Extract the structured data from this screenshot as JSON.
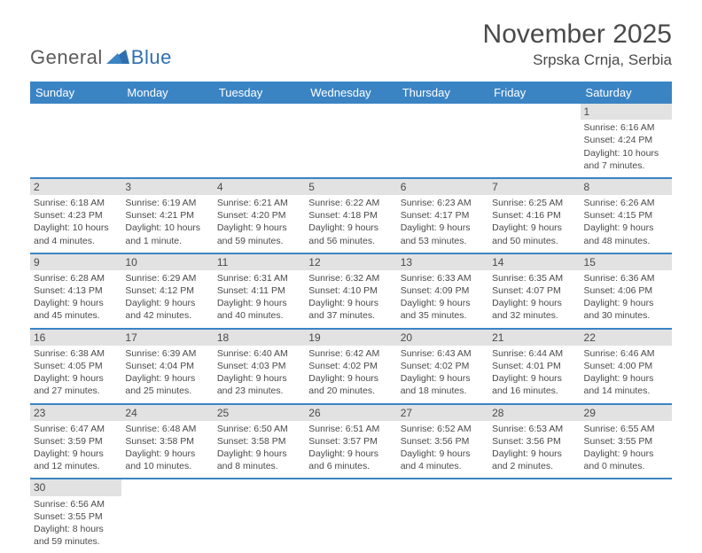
{
  "brand": {
    "general": "General",
    "blue": "Blue"
  },
  "title": "November 2025",
  "location": "Srpska Crnja, Serbia",
  "style": {
    "header_bg": "#3b84c4",
    "header_text": "#ffffff",
    "daybar_bg": "#e2e2e2",
    "rule_color": "#3b84c4",
    "body_text": "#4a4a4a",
    "title_fontsize": 30,
    "location_fontsize": 17,
    "th_fontsize": 13,
    "cell_fontsize": 10.5
  },
  "weekdays": [
    "Sunday",
    "Monday",
    "Tuesday",
    "Wednesday",
    "Thursday",
    "Friday",
    "Saturday"
  ],
  "weeks": [
    [
      null,
      null,
      null,
      null,
      null,
      null,
      {
        "n": "1",
        "sr": "6:16 AM",
        "ss": "4:24 PM",
        "dl": "10 hours and 7 minutes."
      }
    ],
    [
      {
        "n": "2",
        "sr": "6:18 AM",
        "ss": "4:23 PM",
        "dl": "10 hours and 4 minutes."
      },
      {
        "n": "3",
        "sr": "6:19 AM",
        "ss": "4:21 PM",
        "dl": "10 hours and 1 minute."
      },
      {
        "n": "4",
        "sr": "6:21 AM",
        "ss": "4:20 PM",
        "dl": "9 hours and 59 minutes."
      },
      {
        "n": "5",
        "sr": "6:22 AM",
        "ss": "4:18 PM",
        "dl": "9 hours and 56 minutes."
      },
      {
        "n": "6",
        "sr": "6:23 AM",
        "ss": "4:17 PM",
        "dl": "9 hours and 53 minutes."
      },
      {
        "n": "7",
        "sr": "6:25 AM",
        "ss": "4:16 PM",
        "dl": "9 hours and 50 minutes."
      },
      {
        "n": "8",
        "sr": "6:26 AM",
        "ss": "4:15 PM",
        "dl": "9 hours and 48 minutes."
      }
    ],
    [
      {
        "n": "9",
        "sr": "6:28 AM",
        "ss": "4:13 PM",
        "dl": "9 hours and 45 minutes."
      },
      {
        "n": "10",
        "sr": "6:29 AM",
        "ss": "4:12 PM",
        "dl": "9 hours and 42 minutes."
      },
      {
        "n": "11",
        "sr": "6:31 AM",
        "ss": "4:11 PM",
        "dl": "9 hours and 40 minutes."
      },
      {
        "n": "12",
        "sr": "6:32 AM",
        "ss": "4:10 PM",
        "dl": "9 hours and 37 minutes."
      },
      {
        "n": "13",
        "sr": "6:33 AM",
        "ss": "4:09 PM",
        "dl": "9 hours and 35 minutes."
      },
      {
        "n": "14",
        "sr": "6:35 AM",
        "ss": "4:07 PM",
        "dl": "9 hours and 32 minutes."
      },
      {
        "n": "15",
        "sr": "6:36 AM",
        "ss": "4:06 PM",
        "dl": "9 hours and 30 minutes."
      }
    ],
    [
      {
        "n": "16",
        "sr": "6:38 AM",
        "ss": "4:05 PM",
        "dl": "9 hours and 27 minutes."
      },
      {
        "n": "17",
        "sr": "6:39 AM",
        "ss": "4:04 PM",
        "dl": "9 hours and 25 minutes."
      },
      {
        "n": "18",
        "sr": "6:40 AM",
        "ss": "4:03 PM",
        "dl": "9 hours and 23 minutes."
      },
      {
        "n": "19",
        "sr": "6:42 AM",
        "ss": "4:02 PM",
        "dl": "9 hours and 20 minutes."
      },
      {
        "n": "20",
        "sr": "6:43 AM",
        "ss": "4:02 PM",
        "dl": "9 hours and 18 minutes."
      },
      {
        "n": "21",
        "sr": "6:44 AM",
        "ss": "4:01 PM",
        "dl": "9 hours and 16 minutes."
      },
      {
        "n": "22",
        "sr": "6:46 AM",
        "ss": "4:00 PM",
        "dl": "9 hours and 14 minutes."
      }
    ],
    [
      {
        "n": "23",
        "sr": "6:47 AM",
        "ss": "3:59 PM",
        "dl": "9 hours and 12 minutes."
      },
      {
        "n": "24",
        "sr": "6:48 AM",
        "ss": "3:58 PM",
        "dl": "9 hours and 10 minutes."
      },
      {
        "n": "25",
        "sr": "6:50 AM",
        "ss": "3:58 PM",
        "dl": "9 hours and 8 minutes."
      },
      {
        "n": "26",
        "sr": "6:51 AM",
        "ss": "3:57 PM",
        "dl": "9 hours and 6 minutes."
      },
      {
        "n": "27",
        "sr": "6:52 AM",
        "ss": "3:56 PM",
        "dl": "9 hours and 4 minutes."
      },
      {
        "n": "28",
        "sr": "6:53 AM",
        "ss": "3:56 PM",
        "dl": "9 hours and 2 minutes."
      },
      {
        "n": "29",
        "sr": "6:55 AM",
        "ss": "3:55 PM",
        "dl": "9 hours and 0 minutes."
      }
    ],
    [
      {
        "n": "30",
        "sr": "6:56 AM",
        "ss": "3:55 PM",
        "dl": "8 hours and 59 minutes."
      },
      null,
      null,
      null,
      null,
      null,
      null
    ]
  ],
  "labels": {
    "sunrise": "Sunrise:",
    "sunset": "Sunset:",
    "daylight": "Daylight:"
  }
}
